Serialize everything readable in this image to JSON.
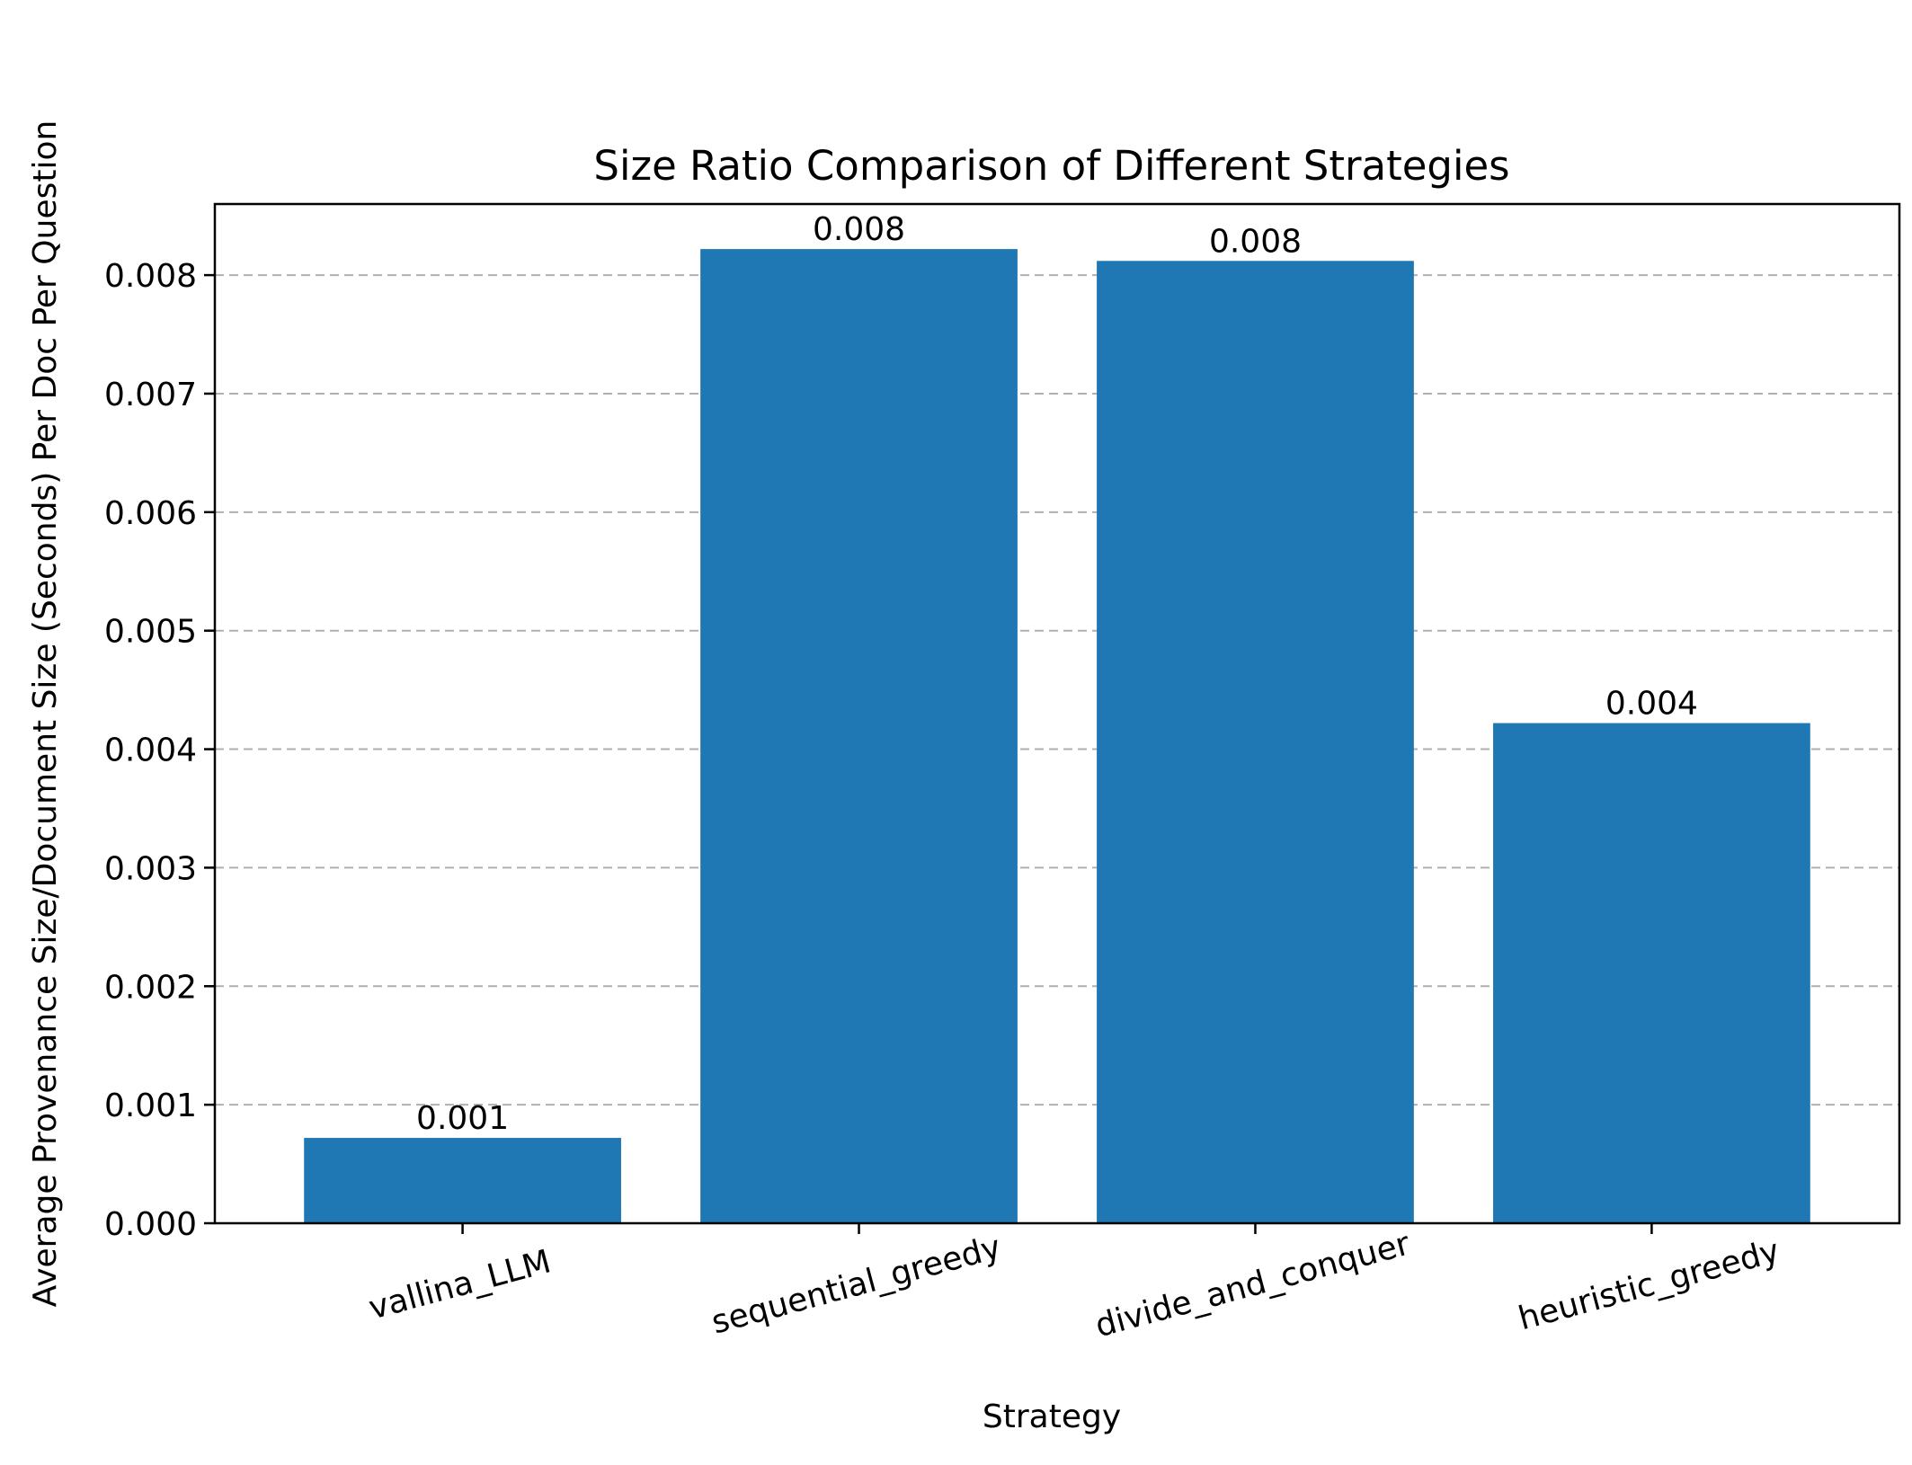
{
  "chart_data": {
    "type": "bar",
    "title": "Size Ratio Comparison of Different Strategies",
    "xlabel": "Strategy",
    "ylabel": "Average Provenance Size/Document Size (Seconds) Per Doc Per Question",
    "categories": [
      "vallina_LLM",
      "sequential_greedy",
      "divide_and_conquer",
      "heuristic_greedy"
    ],
    "values": [
      0.00072,
      0.00822,
      0.00812,
      0.00422
    ],
    "bar_labels": [
      "0.001",
      "0.008",
      "0.008",
      "0.004"
    ],
    "ylim": [
      0,
      0.0086
    ],
    "yticks": [
      0,
      0.001,
      0.002,
      0.003,
      0.004,
      0.005,
      0.006,
      0.007,
      0.008
    ],
    "ytick_labels": [
      "0.000",
      "0.001",
      "0.002",
      "0.003",
      "0.004",
      "0.005",
      "0.006",
      "0.007",
      "0.008"
    ],
    "xtick_rotation_deg": 15,
    "grid": {
      "axis": "y",
      "style": "dashed"
    },
    "bar_color": "#1f77b4"
  }
}
